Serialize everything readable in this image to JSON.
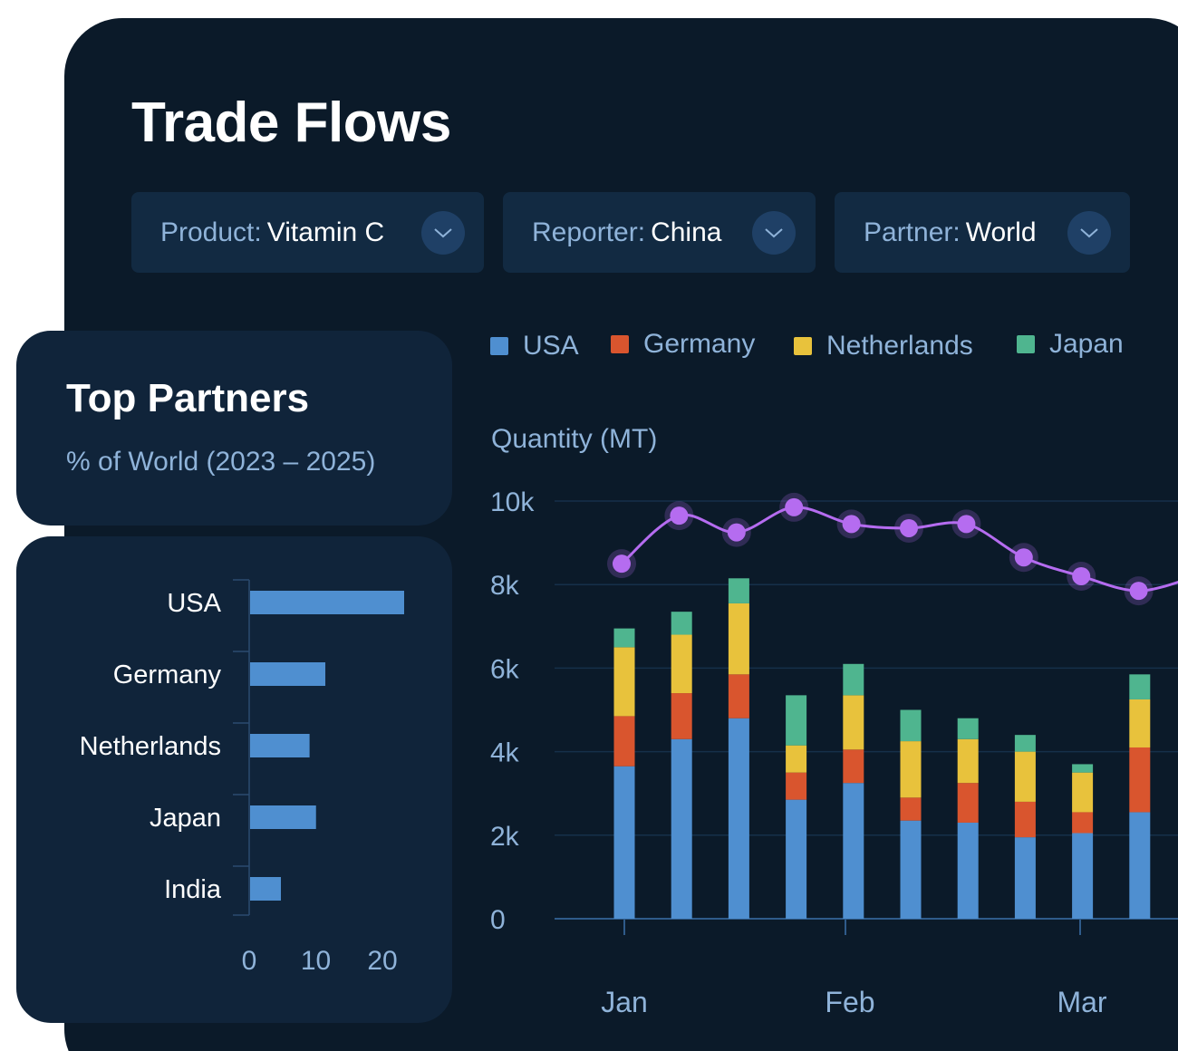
{
  "page_title": "Trade Flows",
  "filters": [
    {
      "label": "Product:",
      "value": "Vitamin C"
    },
    {
      "label": "Reporter:",
      "value": "China"
    },
    {
      "label": "Partner:",
      "value": "World"
    }
  ],
  "top_partners": {
    "title": "Top Partners",
    "subtitle": "% of World (2023 – 2025)"
  },
  "colors": {
    "USA": "#4f8fd0",
    "Germany": "#d9552e",
    "Netherlands": "#e8c23c",
    "Japan": "#4fb58f",
    "line": "#b56cf0",
    "bar_single": "#4f8fd0"
  },
  "chart_data": [
    {
      "type": "bar",
      "orientation": "horizontal",
      "categories": [
        "USA",
        "Germany",
        "Netherlands",
        "Japan",
        "India"
      ],
      "values": [
        21.5,
        10.5,
        8.3,
        9.2,
        4.3
      ],
      "xlim": [
        0,
        25
      ],
      "x_ticks": [
        "0",
        "10",
        "20"
      ],
      "x_tick_values": [
        0,
        10,
        20
      ]
    },
    {
      "type": "bar",
      "stacked": true,
      "ylabel": "Quantity (MT)",
      "ylim": [
        0,
        10000
      ],
      "y_ticks": [
        "0",
        "2k",
        "4k",
        "6k",
        "8k",
        "10k"
      ],
      "y_tick_values": [
        0,
        2000,
        4000,
        6000,
        8000,
        10000
      ],
      "x_labels": [
        "Jan",
        "Feb",
        "Mar"
      ],
      "x_label_positions": [
        0,
        4,
        8
      ],
      "grid": true,
      "series": [
        {
          "name": "USA",
          "values": [
            3650,
            4300,
            4800,
            2850,
            3250,
            2350,
            2300,
            1950,
            2050,
            2550
          ]
        },
        {
          "name": "Germany",
          "values": [
            1200,
            1100,
            1050,
            650,
            800,
            550,
            950,
            850,
            500,
            1550
          ]
        },
        {
          "name": "Netherlands",
          "values": [
            1650,
            1400,
            1700,
            650,
            1300,
            1350,
            1050,
            1200,
            950,
            1150
          ]
        },
        {
          "name": "Japan",
          "values": [
            450,
            550,
            600,
            1200,
            750,
            750,
            500,
            400,
            200,
            600
          ]
        }
      ],
      "line_series": {
        "values": [
          8500,
          9650,
          9250,
          9850,
          9450,
          9350,
          9450,
          8650,
          8200,
          7850,
          8200
        ]
      }
    }
  ]
}
